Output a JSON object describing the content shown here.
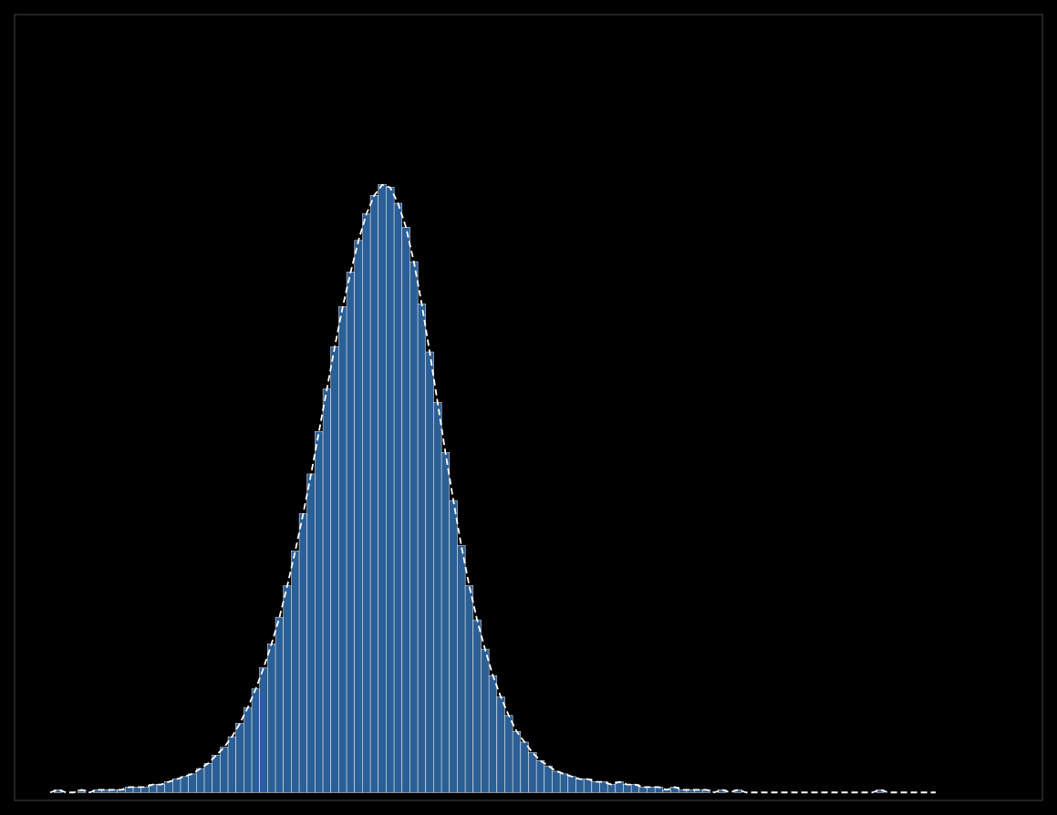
{
  "chart_data": {
    "type": "histogram",
    "bins": [
      20,
      21,
      22,
      23,
      24,
      25,
      26,
      27,
      28,
      29,
      30,
      31,
      32,
      33,
      34,
      35,
      36,
      37,
      38,
      39,
      40,
      41,
      42,
      43,
      44,
      45,
      46,
      47,
      48,
      49,
      50,
      51,
      52,
      53,
      54,
      55,
      56,
      57,
      58,
      59,
      60,
      61,
      62,
      63,
      64,
      65,
      66,
      67,
      68,
      69,
      70,
      71,
      72,
      73,
      74,
      75,
      76,
      77,
      78,
      79,
      80,
      81,
      82,
      83,
      84,
      85,
      86,
      87,
      88,
      89,
      90,
      91,
      92,
      93,
      94,
      95,
      96,
      97,
      98,
      99,
      100,
      101,
      102,
      103,
      104,
      105,
      106,
      107,
      108,
      109,
      110,
      111,
      112,
      113,
      114,
      115,
      116,
      117,
      118,
      119,
      120,
      121,
      122,
      123,
      124,
      125,
      126,
      127,
      128,
      129,
      130,
      131
    ],
    "series": [
      {
        "type": "bar",
        "color": "#2B5F96",
        "values": [
          1,
          0,
          0,
          1,
          0,
          1,
          1,
          1,
          1,
          2,
          2,
          2,
          3,
          3,
          4,
          5,
          6,
          7,
          9,
          11,
          14,
          17,
          21,
          26,
          32,
          39,
          47,
          56,
          66,
          78,
          91,
          105,
          120,
          136,
          152,
          168,
          183,
          196,
          208,
          218,
          225,
          229,
          228,
          222,
          213,
          200,
          184,
          166,
          147,
          128,
          110,
          93,
          78,
          65,
          54,
          44,
          36,
          29,
          23,
          19,
          15,
          12,
          10,
          8,
          7,
          6,
          5,
          5,
          4,
          4,
          3,
          4,
          3,
          3,
          2,
          2,
          2,
          1,
          2,
          1,
          1,
          1,
          1,
          0,
          1,
          0,
          1,
          0,
          0,
          0,
          0,
          0,
          0,
          0,
          0,
          0,
          0,
          0,
          0,
          0,
          0,
          0,
          0,
          0,
          1,
          0,
          0,
          0,
          0,
          0,
          0
        ]
      },
      {
        "type": "line",
        "color": "#FFFFFF",
        "line_style": "dashed",
        "x": [
          19.5,
          20.5,
          21.5,
          22.5,
          23.5,
          24.5,
          25.5,
          26.5,
          27.5,
          28.5,
          29.5,
          30.5,
          31.5,
          32.5,
          33.5,
          34.5,
          35.5,
          36.5,
          37.5,
          38.5,
          39.5,
          40.5,
          41.5,
          42.5,
          43.5,
          44.5,
          45.5,
          46.5,
          47.5,
          48.5,
          49.5,
          50.5,
          51.5,
          52.5,
          53.5,
          54.5,
          55.5,
          56.5,
          57.5,
          58.5,
          59.5,
          60.5,
          61.5,
          62.5,
          63.5,
          64.5,
          65.5,
          66.5,
          67.5,
          68.5,
          69.5,
          70.5,
          71.5,
          72.5,
          73.5,
          74.5,
          75.5,
          76.5,
          77.5,
          78.5,
          79.5,
          80.5,
          81.5,
          82.5,
          83.5,
          84.5,
          85.5,
          86.5,
          87.5,
          88.5,
          89.5,
          90.5,
          91.5,
          92.5,
          93.5,
          94.5,
          95.5,
          96.5,
          97.5,
          98.5,
          99.5,
          100.5,
          101.5,
          102.5,
          103.5,
          104.5,
          105.5,
          106.5,
          107.5,
          108.5,
          109.5,
          110.5,
          111.5,
          112.5,
          113.5,
          114.5,
          115.5,
          116.5,
          117.5,
          118.5,
          119.5,
          120.5,
          121.5,
          122.5,
          123.5,
          124.5,
          125.5,
          126.5,
          127.5,
          128.5,
          129.5,
          130.5,
          131.5
        ],
        "values": [
          0,
          1,
          0,
          0,
          1,
          0,
          1,
          1,
          1,
          1,
          2,
          2,
          2,
          3,
          3,
          4,
          5,
          6,
          7,
          9,
          11,
          14,
          17,
          21,
          26,
          32,
          39,
          47,
          56,
          66,
          78,
          91,
          105,
          120,
          136,
          152,
          168,
          183,
          196,
          208,
          218,
          225,
          229,
          228,
          222,
          213,
          200,
          184,
          166,
          147,
          128,
          110,
          93,
          78,
          65,
          54,
          44,
          36,
          29,
          23,
          19,
          15,
          12,
          10,
          8,
          7,
          6,
          5,
          5,
          4,
          4,
          3,
          4,
          3,
          3,
          2,
          2,
          2,
          1,
          2,
          1,
          1,
          1,
          1,
          0,
          1,
          0,
          1,
          0,
          0,
          0,
          0,
          0,
          0,
          0,
          0,
          0,
          0,
          0,
          0,
          0,
          0,
          0,
          0,
          0,
          1,
          0,
          0,
          0,
          0,
          0,
          0,
          0
        ]
      }
    ],
    "xlim": [
      15,
      145
    ],
    "ylim": [
      -3,
      293.12
    ],
    "tick_labels": false
  }
}
